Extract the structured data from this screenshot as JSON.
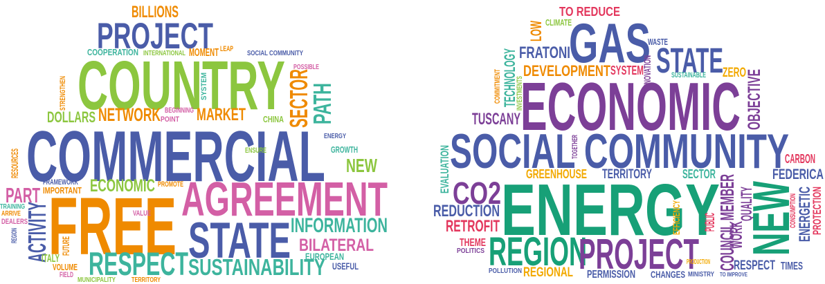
{
  "left_cloud": {
    "words": [
      "BILLIONS",
      "PROJECT",
      "COOPERATION",
      "INTERNATIONAL",
      "MOMENT",
      "LEAP",
      "SOCIAL COMMUNITY",
      "POSSIBLE",
      "COUNTRY",
      "SYSTEM",
      "SECTOR",
      "PATH",
      "STRENGTHEN",
      "DOLLARS",
      "NETWORK",
      "BEGINNING",
      "POINT",
      "MARKET",
      "CHINA",
      "COMMERCIAL",
      "ENERGY",
      "GROWTH",
      "ENSURE",
      "NEW",
      "RESOURCES",
      "FRAMEWORK",
      "IMPORTANT",
      "PART",
      "ECONOMIC",
      "PROMOTE",
      "AGREEMENT",
      "TRAINING",
      "ARRIVE",
      "DEALERS",
      "FREE",
      "ACTIVITY",
      "REGION",
      "VALUE",
      "INFORMATION",
      "STATE",
      "BILATERAL",
      "FUTURE",
      "ITALY",
      "EUROPEAN",
      "VOLUME",
      "FIELD",
      "RESPECT",
      "SUSTAINABILITY",
      "USEFUL",
      "MUNICIPALITY",
      "TERRITORY"
    ]
  },
  "right_cloud": {
    "words": [
      "TO REDUCE",
      "CLIMATE",
      "LOW",
      "GAS",
      "WASTE",
      "FRATONI",
      "TECHNOLOGY",
      "STATE",
      "INNOVATION",
      "DEVELOPMENT",
      "SYSTEM",
      "SUSTAINABLE",
      "ZERO",
      "OBJECTIVE",
      "INVESTMENTS",
      "COMMITMENT",
      "ECONOMIC",
      "TUSCANY",
      "SOCIAL COMMUNITY",
      "TOGETHER",
      "CARBON",
      "EVALUATION",
      "GREENHOUSE",
      "TERRITORY",
      "SECTOR",
      "FEDERICA",
      "CO2",
      "ENERGY",
      "COUNCIL MEMBER",
      "QUALITY",
      "NEW",
      "ENERGETIC",
      "CONSUMPTION",
      "PROTECTION",
      "REDUCTION",
      "EFFICIENCY",
      "PUBLIC",
      "WORK",
      "RETROFIT",
      "THEME",
      "POLITICS",
      "REGION",
      "PROJECT",
      "PRODUCTION",
      "RESPECT",
      "TIMES",
      "POLLUTION",
      "REGIONAL",
      "PERMISSION",
      "CHANGES",
      "MINISTRY",
      "TO IMPROVE"
    ]
  }
}
